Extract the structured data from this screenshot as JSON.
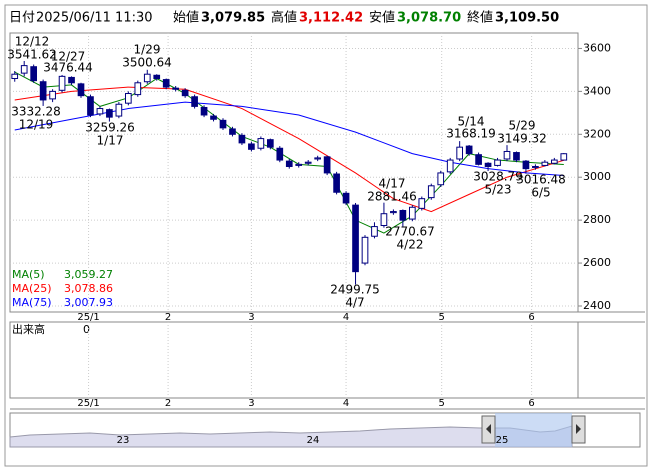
{
  "header": {
    "date_label": "日付",
    "date": "2025/06/11 11:30",
    "open_label": "始値",
    "open": "3,079.85",
    "high_label": "高値",
    "high": "3,112.42",
    "low_label": "安値",
    "low": "3,078.70",
    "close_label": "終値",
    "close": "3,109.50"
  },
  "chart_data": {
    "type": "candlestick",
    "open": [
      3460,
      3485,
      3515,
      3445,
      3365,
      3405,
      3465,
      3435,
      3375,
      3295,
      3315,
      3285,
      3345,
      3385,
      3445,
      3475,
      3455,
      3415,
      3405,
      3375,
      3325,
      3285,
      3265,
      3225,
      3195,
      3155,
      3135,
      3175,
      3135,
      3075,
      3055,
      3065,
      3085,
      3095,
      3015,
      2925,
      2870,
      2600,
      2725,
      2775,
      2835,
      2845,
      2805,
      2855,
      2905,
      2965,
      3025,
      3085,
      3145,
      3105,
      3065,
      3055,
      3085,
      3115,
      3075,
      3045,
      3055,
      3065,
      3079.85
    ],
    "high": [
      3495,
      3541.62,
      3525,
      3455,
      3410,
      3476.44,
      3470,
      3440,
      3385,
      3330,
      3320,
      3350,
      3400,
      3450,
      3500.64,
      3480,
      3460,
      3425,
      3415,
      3385,
      3335,
      3295,
      3275,
      3235,
      3205,
      3165,
      3190,
      3180,
      3145,
      3085,
      3070,
      3080,
      3100,
      3100,
      3025,
      2935,
      2880,
      2730,
      2790,
      2881.46,
      2850,
      2850,
      2870,
      2910,
      2970,
      3030,
      3090,
      3168.19,
      3150,
      3115,
      3070,
      3090,
      3149.32,
      3120,
      3080,
      3060,
      3080,
      3090,
      3112.42
    ],
    "low": [
      3445,
      3470,
      3440,
      3332.28,
      3350,
      3395,
      3430,
      3370,
      3280,
      3285,
      3259.26,
      3275,
      3335,
      3375,
      3435,
      3450,
      3410,
      3400,
      3370,
      3320,
      3280,
      3260,
      3220,
      3190,
      3150,
      3120,
      3125,
      3130,
      3070,
      3040,
      3045,
      3055,
      3075,
      3010,
      2920,
      2870,
      2499.75,
      2590,
      2715,
      2765,
      2825,
      2770.67,
      2795,
      2845,
      2895,
      2955,
      3015,
      3075,
      3100,
      3055,
      3028.79,
      3050,
      3075,
      3070,
      3016.48,
      3035,
      3050,
      3060,
      3078.7
    ],
    "close": [
      3480,
      3520,
      3450,
      3360,
      3400,
      3470,
      3440,
      3380,
      3290,
      3320,
      3280,
      3340,
      3390,
      3440,
      3480,
      3460,
      3420,
      3410,
      3380,
      3330,
      3290,
      3270,
      3230,
      3200,
      3160,
      3130,
      3180,
      3140,
      3080,
      3050,
      3060,
      3070,
      3090,
      3020,
      2930,
      2880,
      2560,
      2720,
      2770,
      2830,
      2840,
      2800,
      2860,
      2900,
      2960,
      3020,
      3080,
      3140,
      3110,
      3060,
      3050,
      3080,
      3120,
      3080,
      3040,
      3050,
      3070,
      3080,
      3109.5
    ],
    "up_color": "#ffffff",
    "down_color": "#000080",
    "series": [
      {
        "name": "MA(5)",
        "color": "#008000",
        "value_label": "3,059.27",
        "x": [
          0,
          3,
          6,
          9,
          12,
          15,
          18,
          21,
          24,
          27,
          30,
          33,
          36,
          39,
          42,
          45,
          48,
          51,
          54,
          58
        ],
        "values": [
          3490,
          3420,
          3430,
          3330,
          3370,
          3460,
          3390,
          3290,
          3190,
          3140,
          3060,
          3050,
          2800,
          2740,
          2820,
          2960,
          3110,
          3080,
          3070,
          3059.27
        ]
      },
      {
        "name": "MA(25)",
        "color": "#ff0000",
        "value_label": "3,078.86",
        "x": [
          0,
          6,
          12,
          18,
          24,
          30,
          36,
          40,
          44,
          48,
          52,
          58
        ],
        "values": [
          3360,
          3400,
          3420,
          3410,
          3320,
          3180,
          3020,
          2900,
          2840,
          2920,
          3000,
          3078.86
        ]
      },
      {
        "name": "MA(75)",
        "color": "#0000ff",
        "value_label": "3,007.93",
        "x": [
          0,
          6,
          12,
          18,
          24,
          30,
          36,
          42,
          46,
          50,
          54,
          58
        ],
        "values": [
          3220,
          3270,
          3320,
          3350,
          3330,
          3290,
          3210,
          3110,
          3070,
          3040,
          3020,
          3007.93
        ]
      }
    ],
    "annotations": [
      {
        "date": "12/12",
        "value": 3541.62
      },
      {
        "date": "12/27",
        "value": 3476.44
      },
      {
        "date": "12/19",
        "value": 3332.28
      },
      {
        "date": "1/17",
        "value": 3259.26
      },
      {
        "date": "1/29",
        "value": 3500.64
      },
      {
        "date": "5/14",
        "value": 3168.19
      },
      {
        "date": "5/29",
        "value": 3149.32
      },
      {
        "date": "5/23",
        "value": 3028.79
      },
      {
        "date": "6/5",
        "value": 3016.48
      },
      {
        "date": "4/17",
        "value": 2881.46
      },
      {
        "date": "4/22",
        "value": 2770.67
      },
      {
        "date": "4/7",
        "value": 2499.75
      }
    ],
    "xlim": [
      -0.5,
      59.5
    ],
    "xticks": [
      {
        "value": 7.8,
        "label": "25/1"
      },
      {
        "value": 16.2,
        "label": "2"
      },
      {
        "value": 25,
        "label": "3"
      },
      {
        "value": 35,
        "label": "4"
      },
      {
        "value": 45.1,
        "label": "5"
      },
      {
        "value": 54.6,
        "label": "6"
      }
    ],
    "ylim": [
      2372,
      3672
    ],
    "yticks": [
      2400,
      2600,
      2800,
      3000,
      3200,
      3400,
      3600
    ],
    "grid": true,
    "volume": {
      "label": "出来高",
      "value": 0
    },
    "navigator": {
      "labels": [
        "23",
        "24",
        "25"
      ]
    }
  }
}
